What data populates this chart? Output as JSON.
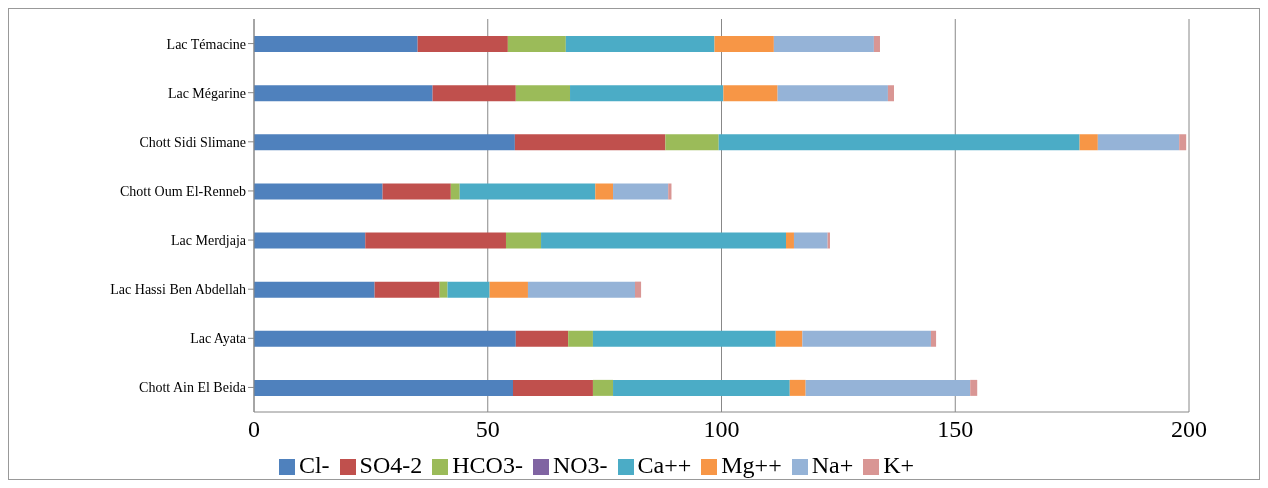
{
  "chart_data": {
    "type": "bar",
    "orientation": "horizontal",
    "stacked": true,
    "categories": [
      "Lac Témacine",
      "Lac Mégarine",
      "Chott Sidi Slimane",
      "Chott Oum El-Renneb",
      "Lac Merdjaja",
      "Lac Hassi Ben Abdellah",
      "Lac Ayata",
      "Chott Ain El Beida"
    ],
    "series": [
      {
        "name": "Cl-",
        "color": "#4f81bd",
        "values": [
          35,
          38.2,
          55.8,
          27.5,
          23.8,
          25.8,
          56,
          55.4
        ]
      },
      {
        "name": "SO4-2",
        "color": "#c0504d",
        "values": [
          19.3,
          17.8,
          32.2,
          14.6,
          30.1,
          13.9,
          11.2,
          17.1
        ]
      },
      {
        "name": "HCO3-",
        "color": "#9bbb59",
        "values": [
          12.4,
          11.6,
          11.4,
          1.9,
          7.5,
          1.7,
          5.3,
          4.3
        ]
      },
      {
        "name": "NO3-",
        "color": "#8064a2",
        "values": [
          0,
          0,
          0,
          0,
          0,
          0,
          0,
          0
        ]
      },
      {
        "name": "Ca++",
        "color": "#4bacc6",
        "values": [
          31.8,
          32.8,
          77.2,
          29,
          52.4,
          9,
          39.1,
          37.8
        ]
      },
      {
        "name": "Mg++",
        "color": "#f79646",
        "values": [
          12.7,
          11.6,
          3.9,
          3.8,
          1.7,
          8.2,
          5.7,
          3.4
        ]
      },
      {
        "name": "Na+",
        "color": "#95b3d7",
        "values": [
          21.4,
          23.6,
          17.4,
          11.8,
          7.2,
          22.9,
          27.5,
          35.2
        ]
      },
      {
        "name": "K+",
        "color": "#d99694",
        "values": [
          1.3,
          1.3,
          1.5,
          0.7,
          0.5,
          1.3,
          1.1,
          1.5
        ]
      }
    ],
    "xlim": [
      0,
      200
    ],
    "xticks": [
      0,
      50,
      100,
      150,
      200
    ],
    "grid": "x",
    "legend": "bottom"
  }
}
